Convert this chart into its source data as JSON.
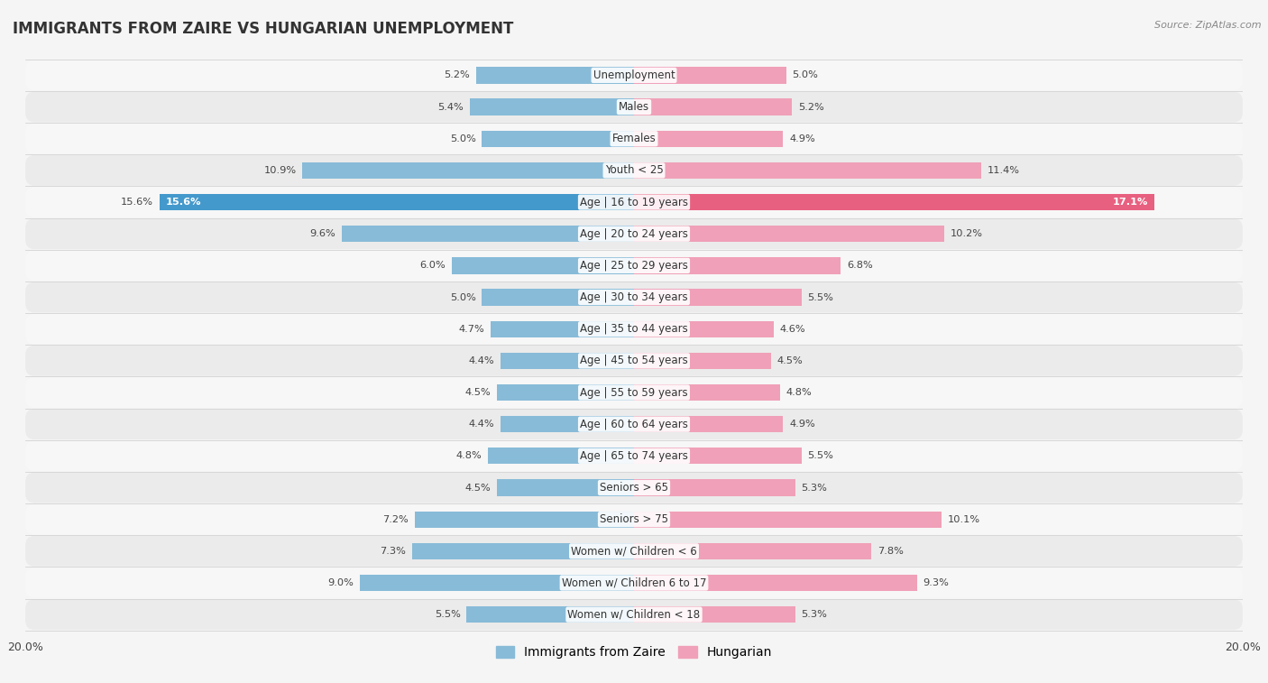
{
  "title": "IMMIGRANTS FROM ZAIRE VS HUNGARIAN UNEMPLOYMENT",
  "source": "Source: ZipAtlas.com",
  "categories": [
    "Unemployment",
    "Males",
    "Females",
    "Youth < 25",
    "Age | 16 to 19 years",
    "Age | 20 to 24 years",
    "Age | 25 to 29 years",
    "Age | 30 to 34 years",
    "Age | 35 to 44 years",
    "Age | 45 to 54 years",
    "Age | 55 to 59 years",
    "Age | 60 to 64 years",
    "Age | 65 to 74 years",
    "Seniors > 65",
    "Seniors > 75",
    "Women w/ Children < 6",
    "Women w/ Children 6 to 17",
    "Women w/ Children < 18"
  ],
  "zaire_values": [
    5.2,
    5.4,
    5.0,
    10.9,
    15.6,
    9.6,
    6.0,
    5.0,
    4.7,
    4.4,
    4.5,
    4.4,
    4.8,
    4.5,
    7.2,
    7.3,
    9.0,
    5.5
  ],
  "hungarian_values": [
    5.0,
    5.2,
    4.9,
    11.4,
    17.1,
    10.2,
    6.8,
    5.5,
    4.6,
    4.5,
    4.8,
    4.9,
    5.5,
    5.3,
    10.1,
    7.8,
    9.3,
    5.3
  ],
  "zaire_color": "#88bbd8",
  "hungarian_color": "#f0a0b8",
  "highlight_zaire_color": "#4499cc",
  "highlight_hungarian_color": "#e86080",
  "max_val": 20.0,
  "bar_height": 0.52,
  "row_color_even": "#f7f7f7",
  "row_color_odd": "#ebebeb",
  "label_fontsize": 8.5,
  "title_fontsize": 12,
  "value_fontsize": 8.2
}
